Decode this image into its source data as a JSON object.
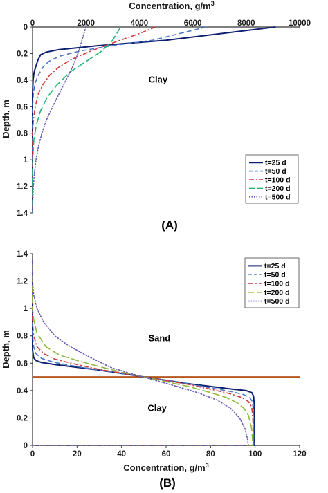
{
  "colors": {
    "t25": "#0d1f6e",
    "t50": "#4a78c8",
    "t100": "#d0393b",
    "t200_A": "#22b573",
    "t200_B": "#8fb83a",
    "t500": "#6a5bb5",
    "interface": "#b5561d",
    "axis": "#333333"
  },
  "chart_data": [
    {
      "type": "line",
      "panel_label": "(A)",
      "xlabel": "Concentration, g/m",
      "xlabel_sup": "3",
      "ylabel": "Depth, m",
      "x_axis_position": "top",
      "y_inverted": true,
      "xlim": [
        0,
        10000
      ],
      "ylim": [
        0,
        1.4
      ],
      "x_ticks": [
        0,
        2000,
        4000,
        6000,
        8000,
        10000
      ],
      "y_ticks": [
        0,
        0.2,
        0.4,
        0.6,
        0.8,
        1,
        1.2,
        1.4
      ],
      "x_tick_labels": [
        "0",
        "2000",
        "4000",
        "6000",
        "8000",
        "10000"
      ],
      "y_tick_labels": [
        "0",
        "0.2",
        "0.4",
        "0.6",
        "0.8",
        "1",
        "1.2",
        "1.4"
      ],
      "annotations": [
        {
          "text": "Clay",
          "x": 4700,
          "y": 0.42
        }
      ],
      "legend_position": "lower-right",
      "series": [
        {
          "name": "t=25 d",
          "style": "solid",
          "color_key": "t25",
          "points": [
            [
              9100,
              0
            ],
            [
              5000,
              0.1
            ],
            [
              2500,
              0.14
            ],
            [
              1000,
              0.17
            ],
            [
              500,
              0.19
            ],
            [
              300,
              0.21
            ],
            [
              200,
              0.25
            ],
            [
              120,
              0.3
            ],
            [
              60,
              0.34
            ],
            [
              20,
              0.4
            ],
            [
              0,
              0.5
            ],
            [
              0,
              1.4
            ]
          ]
        },
        {
          "name": "t=50 d",
          "style": "dash",
          "color_key": "t50",
          "points": [
            [
              6500,
              0
            ],
            [
              4500,
              0.1
            ],
            [
              3000,
              0.14
            ],
            [
              1800,
              0.18
            ],
            [
              1000,
              0.22
            ],
            [
              600,
              0.26
            ],
            [
              400,
              0.3
            ],
            [
              220,
              0.36
            ],
            [
              100,
              0.42
            ],
            [
              30,
              0.5
            ],
            [
              0,
              0.6
            ],
            [
              0,
              1.4
            ]
          ]
        },
        {
          "name": "t=100 d",
          "style": "dashdot",
          "color_key": "t100",
          "points": [
            [
              4600,
              0
            ],
            [
              4000,
              0.05
            ],
            [
              3000,
              0.12
            ],
            [
              2200,
              0.18
            ],
            [
              1500,
              0.24
            ],
            [
              1000,
              0.3
            ],
            [
              650,
              0.36
            ],
            [
              400,
              0.43
            ],
            [
              220,
              0.5
            ],
            [
              100,
              0.6
            ],
            [
              30,
              0.7
            ],
            [
              0,
              0.8
            ],
            [
              0,
              1.4
            ]
          ]
        },
        {
          "name": "t=200 d",
          "style": "longdash",
          "color_key": "t200_A",
          "points": [
            [
              3300,
              0
            ],
            [
              3000,
              0.1
            ],
            [
              2600,
              0.18
            ],
            [
              2000,
              0.26
            ],
            [
              1400,
              0.34
            ],
            [
              900,
              0.44
            ],
            [
              550,
              0.53
            ],
            [
              300,
              0.63
            ],
            [
              140,
              0.74
            ],
            [
              50,
              0.85
            ],
            [
              10,
              0.98
            ],
            [
              0,
              1.1
            ],
            [
              0,
              1.4
            ]
          ]
        },
        {
          "name": "t=500 d",
          "style": "dot",
          "color_key": "t500",
          "points": [
            [
              2000,
              0
            ],
            [
              1850,
              0.1
            ],
            [
              1700,
              0.2
            ],
            [
              1500,
              0.3
            ],
            [
              1250,
              0.4
            ],
            [
              1000,
              0.5
            ],
            [
              750,
              0.6
            ],
            [
              520,
              0.7
            ],
            [
              350,
              0.8
            ],
            [
              220,
              0.9
            ],
            [
              130,
              1.0
            ],
            [
              70,
              1.1
            ],
            [
              30,
              1.2
            ],
            [
              10,
              1.3
            ],
            [
              0,
              1.4
            ]
          ]
        }
      ]
    },
    {
      "type": "line",
      "panel_label": "(B)",
      "xlabel": "Concentration, g/m",
      "xlabel_sup": "3",
      "ylabel": "Depth, m",
      "x_axis_position": "bottom",
      "y_inverted": false,
      "xlim": [
        0,
        120
      ],
      "ylim": [
        0,
        1.4
      ],
      "x_ticks": [
        0,
        20,
        40,
        60,
        80,
        100,
        120
      ],
      "y_ticks": [
        0,
        0.2,
        0.4,
        0.6,
        0.8,
        1,
        1.2,
        1.4
      ],
      "x_tick_labels": [
        "0",
        "20",
        "40",
        "60",
        "80",
        "100",
        "120"
      ],
      "y_tick_labels": [
        "0",
        "0.2",
        "0.4",
        "0.6",
        "0.8",
        "1",
        "1.2",
        "1.4"
      ],
      "interface_depth": 0.5,
      "annotations": [
        {
          "text": "Sand",
          "x": 57,
          "y": 0.76
        },
        {
          "text": "Clay",
          "x": 56,
          "y": 0.25
        }
      ],
      "legend_position": "top-right",
      "series": [
        {
          "name": "t=25 d",
          "style": "solid",
          "color_key": "t25",
          "points": [
            [
              0,
              1.4
            ],
            [
              0,
              0.7
            ],
            [
              0.5,
              0.64
            ],
            [
              1.5,
              0.62
            ],
            [
              4,
              0.605
            ],
            [
              10,
              0.59
            ],
            [
              20,
              0.57
            ],
            [
              30,
              0.55
            ],
            [
              40,
              0.525
            ],
            [
              50,
              0.5
            ],
            [
              60,
              0.475
            ],
            [
              70,
              0.45
            ],
            [
              80,
              0.43
            ],
            [
              90,
              0.41
            ],
            [
              96,
              0.4
            ],
            [
              98.5,
              0.385
            ],
            [
              99.3,
              0.36
            ],
            [
              99.6,
              0.3
            ],
            [
              99.8,
              0
            ],
            [
              0,
              0
            ]
          ]
        },
        {
          "name": "t=50 d",
          "style": "dash",
          "color_key": "t50",
          "points": [
            [
              0,
              1.4
            ],
            [
              0,
              0.8
            ],
            [
              0.5,
              0.72
            ],
            [
              1.5,
              0.67
            ],
            [
              4,
              0.635
            ],
            [
              10,
              0.605
            ],
            [
              20,
              0.575
            ],
            [
              30,
              0.55
            ],
            [
              40,
              0.525
            ],
            [
              50,
              0.5
            ],
            [
              60,
              0.475
            ],
            [
              70,
              0.45
            ],
            [
              80,
              0.42
            ],
            [
              90,
              0.39
            ],
            [
              95,
              0.37
            ],
            [
              97.5,
              0.35
            ],
            [
              98.8,
              0.32
            ],
            [
              99.2,
              0.25
            ],
            [
              99.4,
              0
            ],
            [
              0,
              0
            ]
          ]
        },
        {
          "name": "t=100 d",
          "style": "dashdot",
          "color_key": "t100",
          "points": [
            [
              0,
              1.4
            ],
            [
              0,
              0.9
            ],
            [
              0.5,
              0.8
            ],
            [
              2,
              0.72
            ],
            [
              5,
              0.67
            ],
            [
              10,
              0.63
            ],
            [
              20,
              0.59
            ],
            [
              30,
              0.555
            ],
            [
              40,
              0.527
            ],
            [
              50,
              0.5
            ],
            [
              60,
              0.473
            ],
            [
              70,
              0.445
            ],
            [
              80,
              0.41
            ],
            [
              88,
              0.38
            ],
            [
              94,
              0.35
            ],
            [
              97,
              0.32
            ],
            [
              98.5,
              0.28
            ],
            [
              99,
              0.2
            ],
            [
              99.2,
              0
            ],
            [
              0,
              0
            ]
          ]
        },
        {
          "name": "t=200 d",
          "style": "longdash",
          "color_key": "t200_B",
          "points": [
            [
              0,
              1.4
            ],
            [
              0,
              1.0
            ],
            [
              0.5,
              0.92
            ],
            [
              2,
              0.82
            ],
            [
              6,
              0.72
            ],
            [
              12,
              0.66
            ],
            [
              20,
              0.62
            ],
            [
              30,
              0.575
            ],
            [
              40,
              0.535
            ],
            [
              50,
              0.5
            ],
            [
              60,
              0.465
            ],
            [
              70,
              0.43
            ],
            [
              80,
              0.385
            ],
            [
              87,
              0.35
            ],
            [
              92,
              0.31
            ],
            [
              95,
              0.27
            ],
            [
              97,
              0.22
            ],
            [
              98.5,
              0.12
            ],
            [
              99,
              0
            ],
            [
              0,
              0
            ]
          ]
        },
        {
          "name": "t=500 d",
          "style": "dot",
          "color_key": "t500",
          "points": [
            [
              0,
              1.4
            ],
            [
              0,
              1.2
            ],
            [
              0.5,
              1.1
            ],
            [
              2,
              1.0
            ],
            [
              5,
              0.9
            ],
            [
              10,
              0.8
            ],
            [
              16,
              0.73
            ],
            [
              25,
              0.65
            ],
            [
              35,
              0.57
            ],
            [
              45,
              0.52
            ],
            [
              50,
              0.5
            ],
            [
              55,
              0.475
            ],
            [
              65,
              0.43
            ],
            [
              75,
              0.38
            ],
            [
              83,
              0.33
            ],
            [
              89,
              0.27
            ],
            [
              93,
              0.2
            ],
            [
              95.5,
              0.12
            ],
            [
              96.5,
              0.05
            ],
            [
              97,
              0
            ],
            [
              0,
              0
            ]
          ]
        }
      ]
    }
  ]
}
